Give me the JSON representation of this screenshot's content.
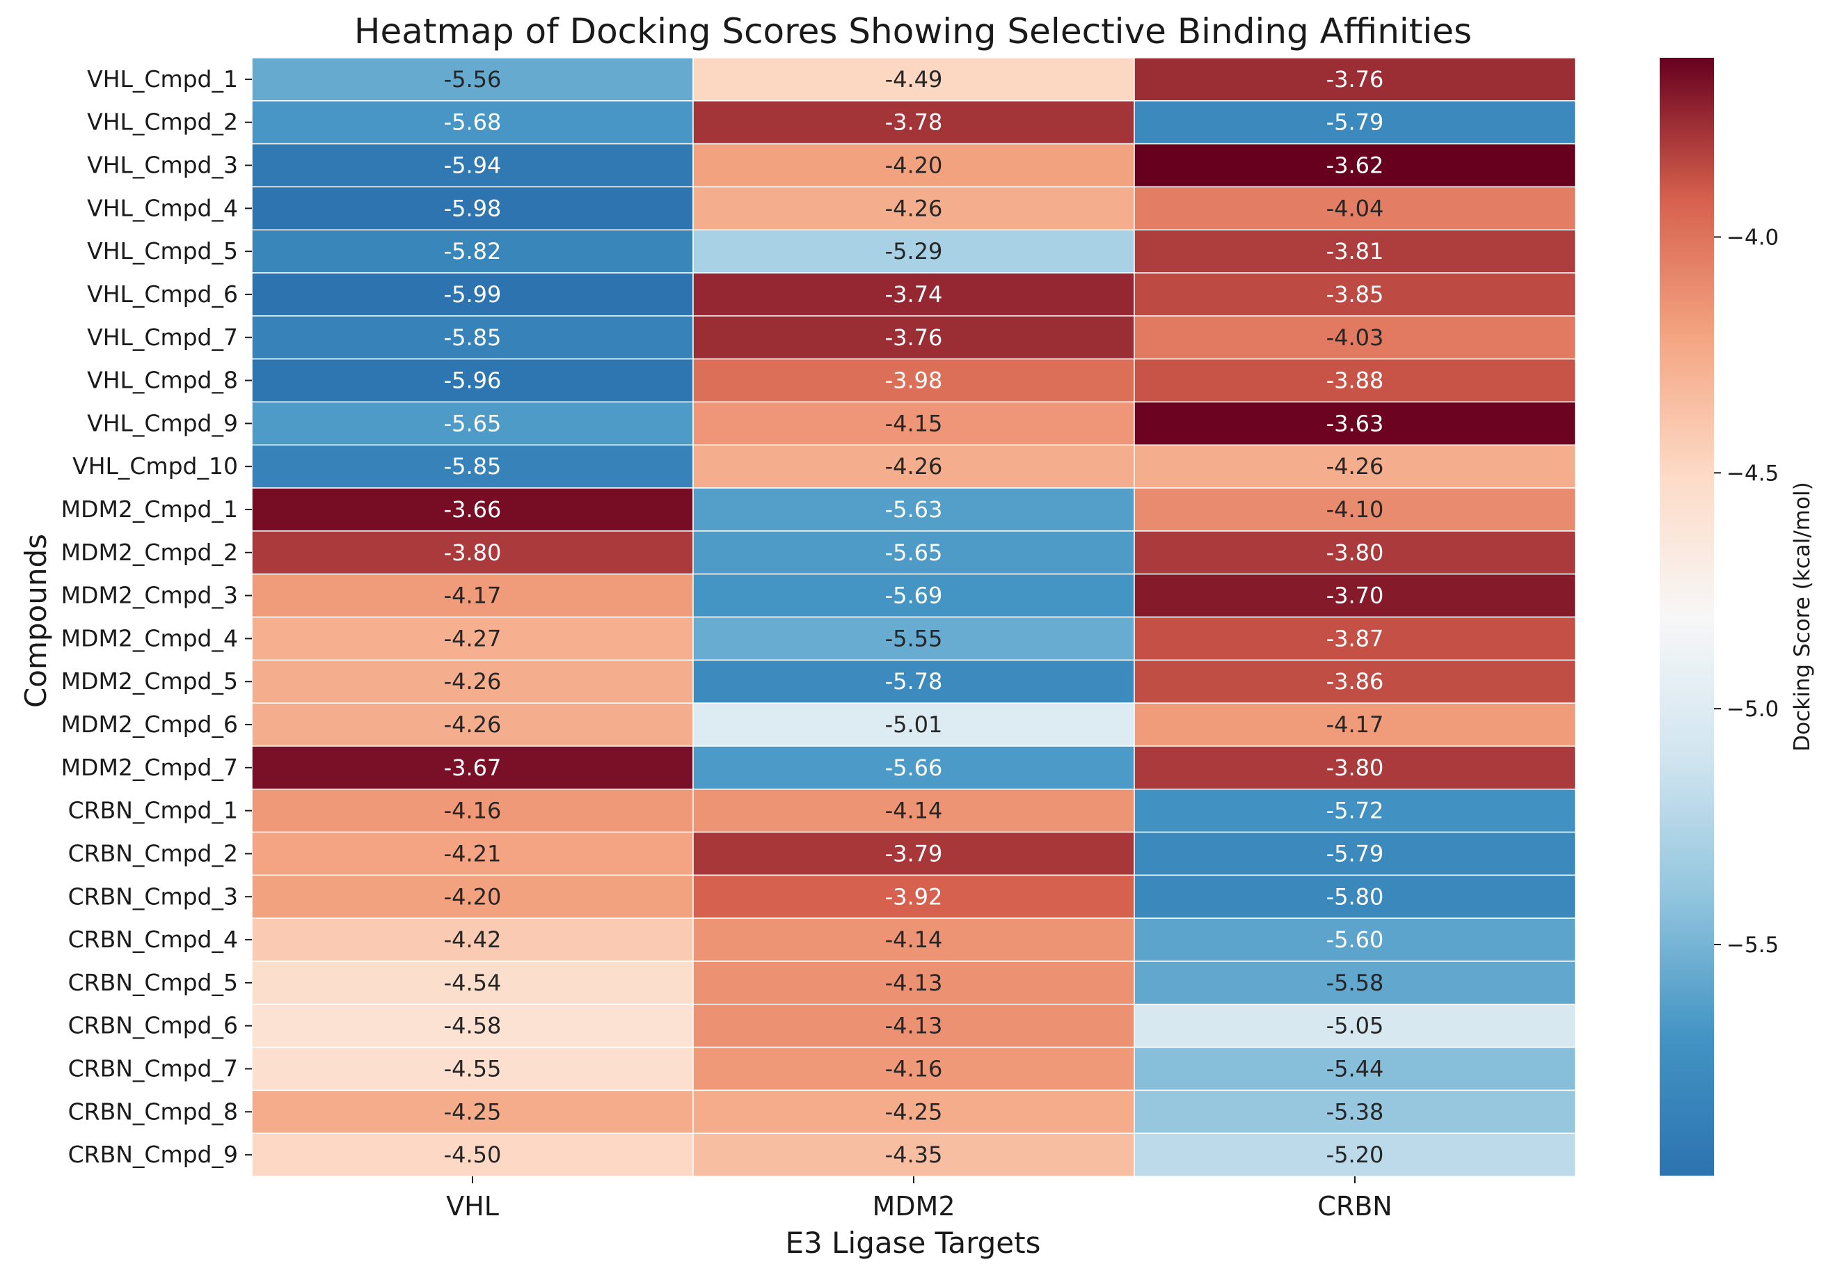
{
  "chart_data": {
    "type": "heatmap",
    "title": "Heatmap of Docking Scores Showing Selective Binding Affinities",
    "xlabel": "E3 Ligase Targets",
    "ylabel": "Compounds",
    "columns": [
      "VHL",
      "MDM2",
      "CRBN"
    ],
    "rows": [
      "VHL_Cmpd_1",
      "VHL_Cmpd_2",
      "VHL_Cmpd_3",
      "VHL_Cmpd_4",
      "VHL_Cmpd_5",
      "VHL_Cmpd_6",
      "VHL_Cmpd_7",
      "VHL_Cmpd_8",
      "VHL_Cmpd_9",
      "VHL_Cmpd_10",
      "MDM2_Cmpd_1",
      "MDM2_Cmpd_2",
      "MDM2_Cmpd_3",
      "MDM2_Cmpd_4",
      "MDM2_Cmpd_5",
      "MDM2_Cmpd_6",
      "MDM2_Cmpd_7",
      "CRBN_Cmpd_1",
      "CRBN_Cmpd_2",
      "CRBN_Cmpd_3",
      "CRBN_Cmpd_4",
      "CRBN_Cmpd_5",
      "CRBN_Cmpd_6",
      "CRBN_Cmpd_7",
      "CRBN_Cmpd_8",
      "CRBN_Cmpd_9"
    ],
    "values": [
      [
        -5.56,
        -4.49,
        -3.76
      ],
      [
        -5.68,
        -3.78,
        -5.79
      ],
      [
        -5.94,
        -4.2,
        -3.62
      ],
      [
        -5.98,
        -4.26,
        -4.04
      ],
      [
        -5.82,
        -5.29,
        -3.81
      ],
      [
        -5.99,
        -3.74,
        -3.85
      ],
      [
        -5.85,
        -3.76,
        -4.03
      ],
      [
        -5.96,
        -3.98,
        -3.88
      ],
      [
        -5.65,
        -4.15,
        -3.63
      ],
      [
        -5.85,
        -4.26,
        -4.26
      ],
      [
        -3.66,
        -5.63,
        -4.1
      ],
      [
        -3.8,
        -5.65,
        -3.8
      ],
      [
        -4.17,
        -5.69,
        -3.7
      ],
      [
        -4.27,
        -5.55,
        -3.87
      ],
      [
        -4.26,
        -5.78,
        -3.86
      ],
      [
        -4.26,
        -5.01,
        -4.17
      ],
      [
        -3.67,
        -5.66,
        -3.8
      ],
      [
        -4.16,
        -4.14,
        -5.72
      ],
      [
        -4.21,
        -3.79,
        -5.79
      ],
      [
        -4.2,
        -3.92,
        -5.8
      ],
      [
        -4.42,
        -4.14,
        -5.6
      ],
      [
        -4.54,
        -4.13,
        -5.58
      ],
      [
        -4.58,
        -4.13,
        -5.05
      ],
      [
        -4.55,
        -4.16,
        -5.44
      ],
      [
        -4.25,
        -4.25,
        -5.38
      ],
      [
        -4.5,
        -4.35,
        -5.2
      ]
    ],
    "value_format": "2dp",
    "colormap": "RdBu_r",
    "vmin": -5.99,
    "vmax": -3.62,
    "colorbar": {
      "label": "Docking Score (kcal/mol)",
      "ticks": [
        -4.0,
        -4.5,
        -5.0,
        -5.5
      ],
      "tick_labels": [
        "−4.0",
        "−4.5",
        "−5.0",
        "−5.5"
      ]
    }
  }
}
